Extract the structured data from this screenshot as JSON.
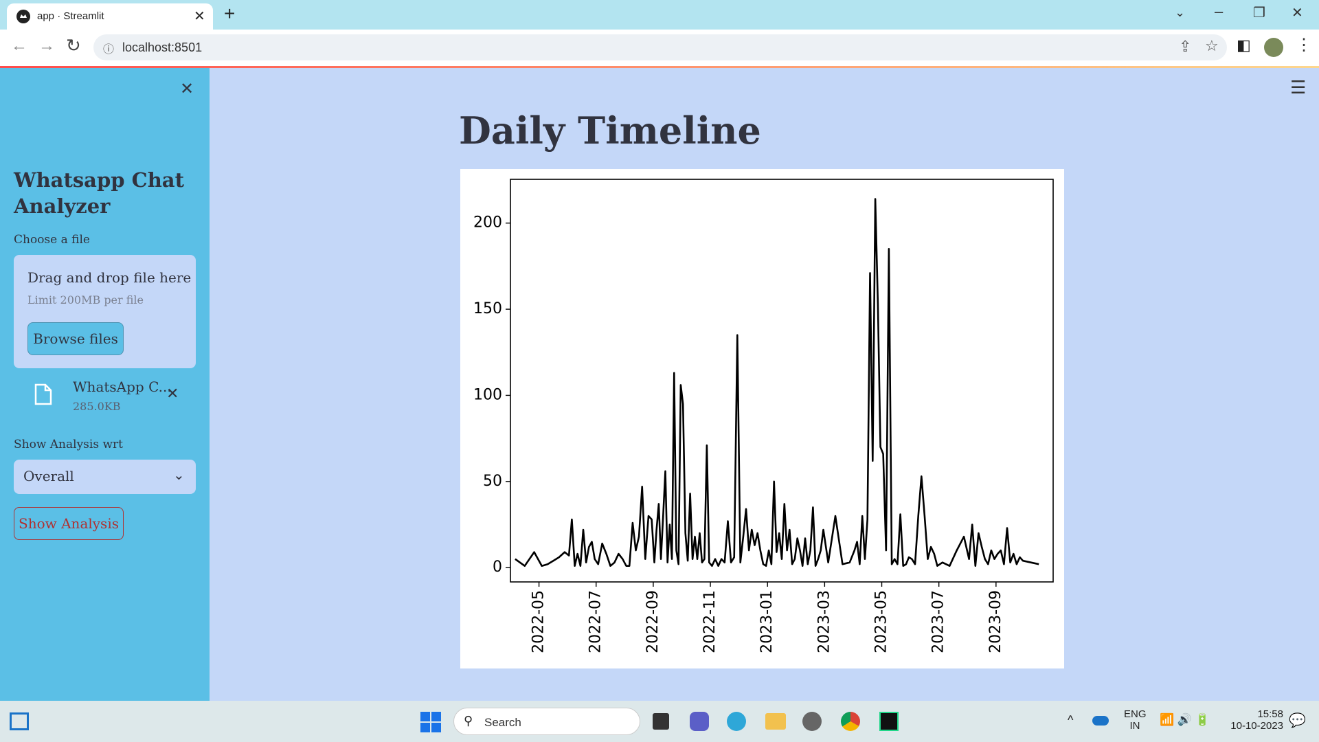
{
  "browser": {
    "tab_title": "app · Streamlit",
    "url": "localhost:8501"
  },
  "sidebar": {
    "title": "Whatsapp Chat Analyzer",
    "uploader_label": "Choose a file",
    "drop_text": "Drag and drop file here",
    "limit_text": "Limit 200MB per file",
    "browse_button": "Browse files",
    "file_name": "WhatsApp C...",
    "file_size": "285.0KB",
    "select_label": "Show Analysis wrt",
    "select_value": "Overall",
    "button": "Show Analysis"
  },
  "main": {
    "title": "Daily Timeline"
  },
  "chart_data": {
    "type": "line",
    "x": [
      "2022-04",
      "2022-04",
      "2022-04",
      "2022-05",
      "2022-05",
      "2022-05",
      "2022-05",
      "2022-05",
      "2022-06",
      "2022-06",
      "2022-06",
      "2022-06",
      "2022-06",
      "2022-06",
      "2022-06",
      "2022-06",
      "2022-06",
      "2022-06",
      "2022-07",
      "2022-07",
      "2022-07",
      "2022-07",
      "2022-07",
      "2022-07",
      "2022-07",
      "2022-08",
      "2022-08",
      "2022-08",
      "2022-08",
      "2022-08",
      "2022-08",
      "2022-08",
      "2022-08",
      "2022-08",
      "2022-09",
      "2022-09",
      "2022-09",
      "2022-09",
      "2022-09",
      "2022-09",
      "2022-09",
      "2022-09",
      "2022-09",
      "2022-09",
      "2022-09",
      "2022-09",
      "2022-09",
      "2022-10",
      "2022-10",
      "2022-10",
      "2022-10",
      "2022-10",
      "2022-10",
      "2022-10",
      "2022-10",
      "2022-10",
      "2022-10",
      "2022-10",
      "2022-10",
      "2022-11",
      "2022-11",
      "2022-11",
      "2022-11",
      "2022-11",
      "2022-11",
      "2022-11",
      "2022-11",
      "2022-11",
      "2022-12",
      "2022-12",
      "2022-12",
      "2022-12",
      "2022-12",
      "2022-12",
      "2022-12",
      "2022-12",
      "2022-12",
      "2022-12",
      "2023-01",
      "2023-01",
      "2023-01",
      "2023-01",
      "2023-01",
      "2023-01",
      "2023-01",
      "2023-01",
      "2023-01",
      "2023-01",
      "2023-01",
      "2023-02",
      "2023-02",
      "2023-02",
      "2023-02",
      "2023-02",
      "2023-02",
      "2023-02",
      "2023-02",
      "2023-02",
      "2023-02",
      "2023-02",
      "2023-03",
      "2023-03",
      "2023-03",
      "2023-03",
      "2023-04",
      "2023-04",
      "2023-04",
      "2023-04",
      "2023-04",
      "2023-04",
      "2023-04",
      "2023-04",
      "2023-04",
      "2023-04",
      "2023-04",
      "2023-05",
      "2023-05",
      "2023-05",
      "2023-05",
      "2023-05",
      "2023-05",
      "2023-05",
      "2023-05",
      "2023-05",
      "2023-05",
      "2023-06",
      "2023-06",
      "2023-06",
      "2023-06",
      "2023-06",
      "2023-06",
      "2023-06",
      "2023-06",
      "2023-06",
      "2023-07",
      "2023-07",
      "2023-07",
      "2023-07",
      "2023-08",
      "2023-08",
      "2023-08",
      "2023-08",
      "2023-08",
      "2023-08",
      "2023-08",
      "2023-08",
      "2023-08",
      "2023-09",
      "2023-09",
      "2023-09",
      "2023-09",
      "2023-09",
      "2023-09",
      "2023-09",
      "2023-09",
      "2023-09",
      "2023-10"
    ],
    "series": [
      {
        "color": "#000000",
        "values": [
          5,
          1,
          9,
          1,
          2,
          4,
          6,
          9,
          7,
          28,
          1,
          8,
          1,
          22,
          3,
          12,
          15,
          5,
          2,
          14,
          8,
          1,
          3,
          8,
          5,
          1,
          1,
          26,
          10,
          18,
          47,
          5,
          30,
          28,
          3,
          22,
          37,
          5,
          30,
          56,
          3,
          25,
          5,
          113,
          10,
          2,
          106,
          95,
          20,
          4,
          43,
          5,
          18,
          5,
          20,
          3,
          5,
          71,
          3,
          1,
          5,
          1,
          5,
          3,
          27,
          3,
          6,
          135,
          3,
          18,
          34,
          10,
          22,
          13,
          20,
          10,
          2,
          1,
          10,
          2,
          50,
          9,
          20,
          5,
          37,
          10,
          22,
          2,
          5,
          17,
          10,
          1,
          17,
          2,
          10,
          35,
          1,
          5,
          10,
          22,
          3,
          30,
          2,
          3,
          10,
          15,
          2,
          30,
          5,
          28,
          171,
          62,
          214,
          153,
          70,
          66,
          10,
          185,
          2,
          5,
          2,
          31,
          1,
          2,
          6,
          5,
          2,
          30,
          53,
          30,
          5,
          12,
          8,
          1,
          3,
          1,
          10,
          18,
          5,
          25,
          1,
          20,
          12,
          5,
          2,
          10,
          5,
          8,
          10,
          2,
          23,
          3,
          8,
          2,
          6,
          4,
          2
        ]
      }
    ],
    "xlim": [
      "2022-04",
      "2023-10"
    ],
    "xticks": [
      "2022-05",
      "2022-07",
      "2022-09",
      "2022-11",
      "2023-01",
      "2023-03",
      "2023-05",
      "2023-07",
      "2023-09"
    ],
    "ylim": [
      -8.3,
      225.4
    ],
    "yticks": [
      0,
      50,
      100,
      150,
      200
    ],
    "grid": false
  },
  "taskbar": {
    "search": "Search",
    "language": "ENG",
    "region": "IN",
    "time": "15:58",
    "date": "10-10-2023"
  }
}
